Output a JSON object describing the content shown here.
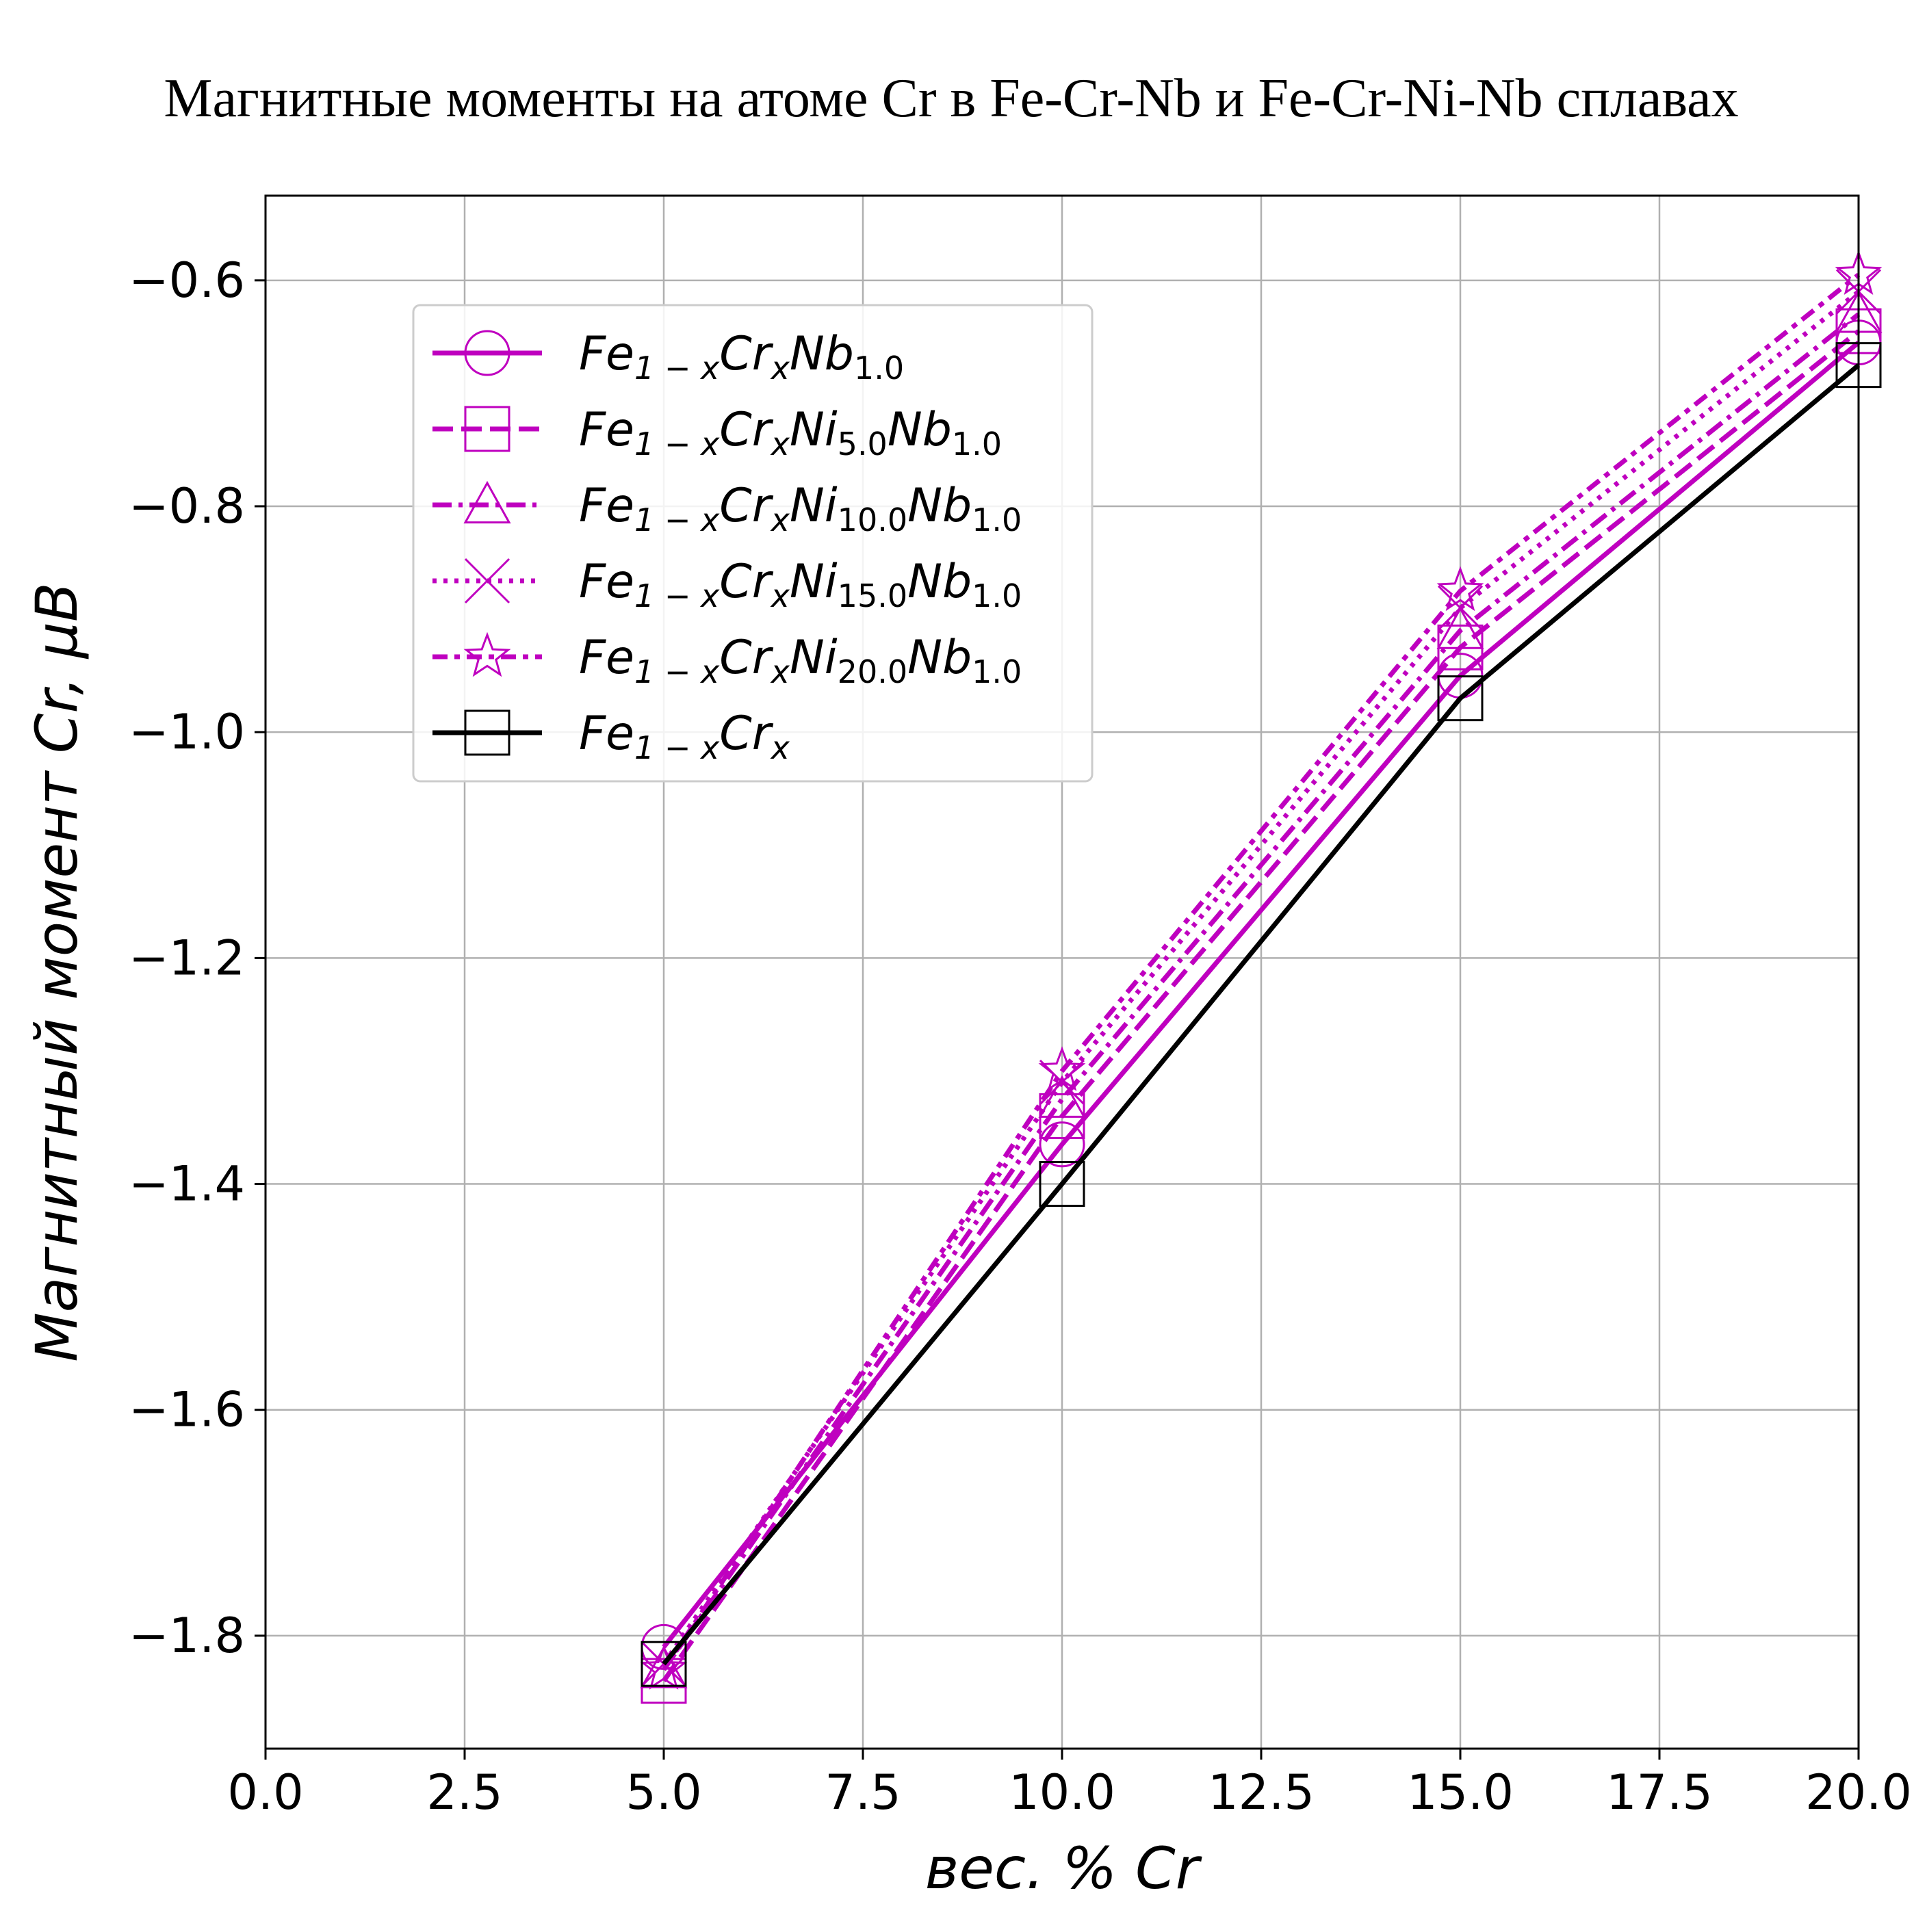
{
  "chart_data": {
    "type": "line",
    "title": "Магнитные моменты на атоме Cr в Fe-Cr-Nb и Fe-Cr-Ni-Nb сплавах",
    "xlabel": "вес.  % Cr",
    "ylabel": "Магнитный момент Cr,  μB",
    "xlim": [
      0,
      20
    ],
    "ylim": [
      -1.9,
      -0.525
    ],
    "xticks": [
      0.0,
      2.5,
      5.0,
      7.5,
      10.0,
      12.5,
      15.0,
      17.5,
      20.0
    ],
    "xtick_labels": [
      "0.0",
      "2.5",
      "5.0",
      "7.5",
      "10.0",
      "12.5",
      "15.0",
      "17.5",
      "20.0"
    ],
    "yticks": [
      -1.8,
      -1.6,
      -1.4,
      -1.2,
      -1.0,
      -0.8,
      -0.6
    ],
    "ytick_labels": [
      "−1.8",
      "−1.6",
      "−1.4",
      "−1.2",
      "−1.0",
      "−0.8",
      "−0.6"
    ],
    "grid": true,
    "legend_position": "upper-left",
    "x": [
      5,
      10,
      15,
      20
    ],
    "series": [
      {
        "name": "Fe1−xCrxNb1.0",
        "label_parts": [
          {
            "t": "Fe"
          },
          {
            "t": "1 − x",
            "sub": true
          },
          {
            "t": "Cr"
          },
          {
            "t": "x",
            "sub": true
          },
          {
            "t": "Nb"
          },
          {
            "t": "1.0",
            "sub": true
          }
        ],
        "values": [
          -1.81,
          -1.365,
          -0.95,
          -0.655
        ],
        "color": "#bf00bf",
        "dash": "solid",
        "marker": "circle"
      },
      {
        "name": "Fe1−xCrxNi5.0Nb1.0",
        "label_parts": [
          {
            "t": "Fe"
          },
          {
            "t": "1 − x",
            "sub": true
          },
          {
            "t": "Cr"
          },
          {
            "t": "x",
            "sub": true
          },
          {
            "t": "Ni"
          },
          {
            "t": "5.0",
            "sub": true
          },
          {
            "t": "Nb"
          },
          {
            "t": "1.0",
            "sub": true
          }
        ],
        "values": [
          -1.84,
          -1.34,
          -0.925,
          -0.645
        ],
        "color": "#bf00bf",
        "dash": "dashed",
        "marker": "square"
      },
      {
        "name": "Fe1−xCrxNi10.0Nb1.0",
        "label_parts": [
          {
            "t": "Fe"
          },
          {
            "t": "1 − x",
            "sub": true
          },
          {
            "t": "Cr"
          },
          {
            "t": "x",
            "sub": true
          },
          {
            "t": "Ni"
          },
          {
            "t": "10.0",
            "sub": true
          },
          {
            "t": "Nb"
          },
          {
            "t": "1.0",
            "sub": true
          }
        ],
        "values": [
          -1.83,
          -1.325,
          -0.91,
          -0.63
        ],
        "color": "#bf00bf",
        "dash": "dashdot",
        "marker": "triangle"
      },
      {
        "name": "Fe1−xCrxNi15.0Nb1.0",
        "label_parts": [
          {
            "t": "Fe"
          },
          {
            "t": "1 − x",
            "sub": true
          },
          {
            "t": "Cr"
          },
          {
            "t": "x",
            "sub": true
          },
          {
            "t": "Ni"
          },
          {
            "t": "15.0",
            "sub": true
          },
          {
            "t": "Nb"
          },
          {
            "t": "1.0",
            "sub": true
          }
        ],
        "values": [
          -1.825,
          -1.31,
          -0.89,
          -0.61
        ],
        "color": "#bf00bf",
        "dash": "dotted",
        "marker": "x"
      },
      {
        "name": "Fe1−xCrxNi20.0Nb1.0",
        "label_parts": [
          {
            "t": "Fe"
          },
          {
            "t": "1 − x",
            "sub": true
          },
          {
            "t": "Cr"
          },
          {
            "t": "x",
            "sub": true
          },
          {
            "t": "Ni"
          },
          {
            "t": "20.0",
            "sub": true
          },
          {
            "t": "Nb"
          },
          {
            "t": "1.0",
            "sub": true
          }
        ],
        "values": [
          -1.83,
          -1.3,
          -0.875,
          -0.595
        ],
        "color": "#bf00bf",
        "dash": "dashstar",
        "marker": "star"
      },
      {
        "name": "Fe1−xCrx",
        "label_parts": [
          {
            "t": "Fe"
          },
          {
            "t": "1 − x",
            "sub": true
          },
          {
            "t": "Cr"
          },
          {
            "t": "x",
            "sub": true
          }
        ],
        "values": [
          -1.825,
          -1.4,
          -0.97,
          -0.675
        ],
        "color": "#000000",
        "dash": "solid",
        "marker": "square"
      }
    ]
  }
}
